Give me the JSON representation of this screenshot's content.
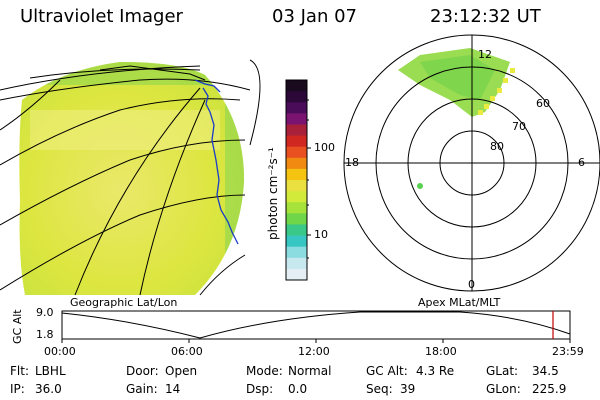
{
  "header": {
    "instrument": "Ultraviolet Imager",
    "date": "03 Jan 07",
    "time": "23:12:32 UT"
  },
  "colorbar": {
    "unit_label": "photon cm⁻²s⁻¹",
    "ticks": [
      "100",
      "10"
    ],
    "colors_top_to_bottom": [
      "#1a0a1e",
      "#2c0838",
      "#4a0c58",
      "#7a1470",
      "#a8203a",
      "#d02820",
      "#e85020",
      "#f08a10",
      "#f4c410",
      "#eae040",
      "#d2ea3a",
      "#a6e23a",
      "#6ed648",
      "#3ac888",
      "#38c6c2",
      "#8adce0",
      "#c8e8f0",
      "#e4eef4"
    ]
  },
  "geo_panel": {
    "label": "Geographic Lat/Lon",
    "fill_color": "#dde640",
    "coast_color": "#1a3cc8"
  },
  "polar_panel": {
    "label": "Apex MLat/MLT",
    "hour_labels": {
      "top": "12",
      "left": "18",
      "right": "6",
      "bottom": "0"
    },
    "lat_labels": [
      "60",
      "70",
      "80"
    ]
  },
  "timeline": {
    "y_axis_label": "GC Alt",
    "y_ticks": [
      "9.0",
      "1.8"
    ],
    "x_ticks": [
      "00:00",
      "06:00",
      "12:00",
      "18:00",
      "23:59"
    ],
    "marker_color": "#c00000"
  },
  "footer": {
    "row1": [
      {
        "label": "Flt:",
        "value": "LBHL"
      },
      {
        "label": "Door:",
        "value": "Open"
      },
      {
        "label": "Mode:",
        "value": "Normal"
      },
      {
        "label": "GC Alt:",
        "value": "4.3 Re"
      },
      {
        "label": "GLat:",
        "value": "34.5"
      }
    ],
    "row2": [
      {
        "label": "IP:",
        "value": "36.0"
      },
      {
        "label": "Gain:",
        "value": "14"
      },
      {
        "label": "Dsp:",
        "value": "0.0"
      },
      {
        "label": "Seq:",
        "value": "39"
      },
      {
        "label": "GLon:",
        "value": "225.9"
      }
    ]
  }
}
